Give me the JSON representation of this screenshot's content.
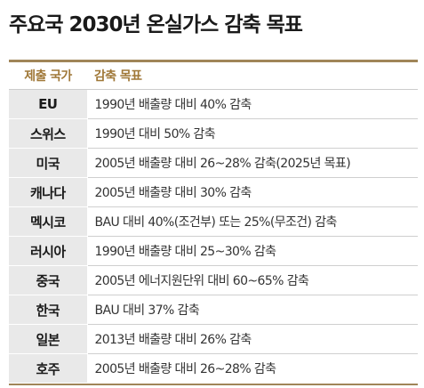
{
  "title": "주요국 2030년 온실가스 감축 목표",
  "table": {
    "headers": [
      "제출 국가",
      "감축 목표"
    ],
    "rows": [
      {
        "country": "EU",
        "goal": "1990년 배출량 대비 40% 감축"
      },
      {
        "country": "스위스",
        "goal": "1990년 대비 50% 감축"
      },
      {
        "country": "미국",
        "goal": "2005년 배출량 대비 26~28% 감축(2025년 목표)"
      },
      {
        "country": "캐나다",
        "goal": "2005년 배출량 대비 30% 감축"
      },
      {
        "country": "멕시코",
        "goal": "BAU 대비 40%(조건부) 또는 25%(무조건) 감축"
      },
      {
        "country": "러시아",
        "goal": "1990년 배출량 대비 25~30% 감축"
      },
      {
        "country": "중국",
        "goal": "2005년 에너지원단위 대비 60~65% 감축"
      },
      {
        "country": "한국",
        "goal": "BAU 대비 37% 감축"
      },
      {
        "country": "일본",
        "goal": "2013년 배출량 대비 26% 감축"
      },
      {
        "country": "호주",
        "goal": "2005년 배출량 대비 26~28% 감축"
      }
    ]
  },
  "colors": {
    "accent_rule": "#a08558",
    "header_text": "#a07838",
    "country_cell_bg": "#e9e9e9"
  }
}
